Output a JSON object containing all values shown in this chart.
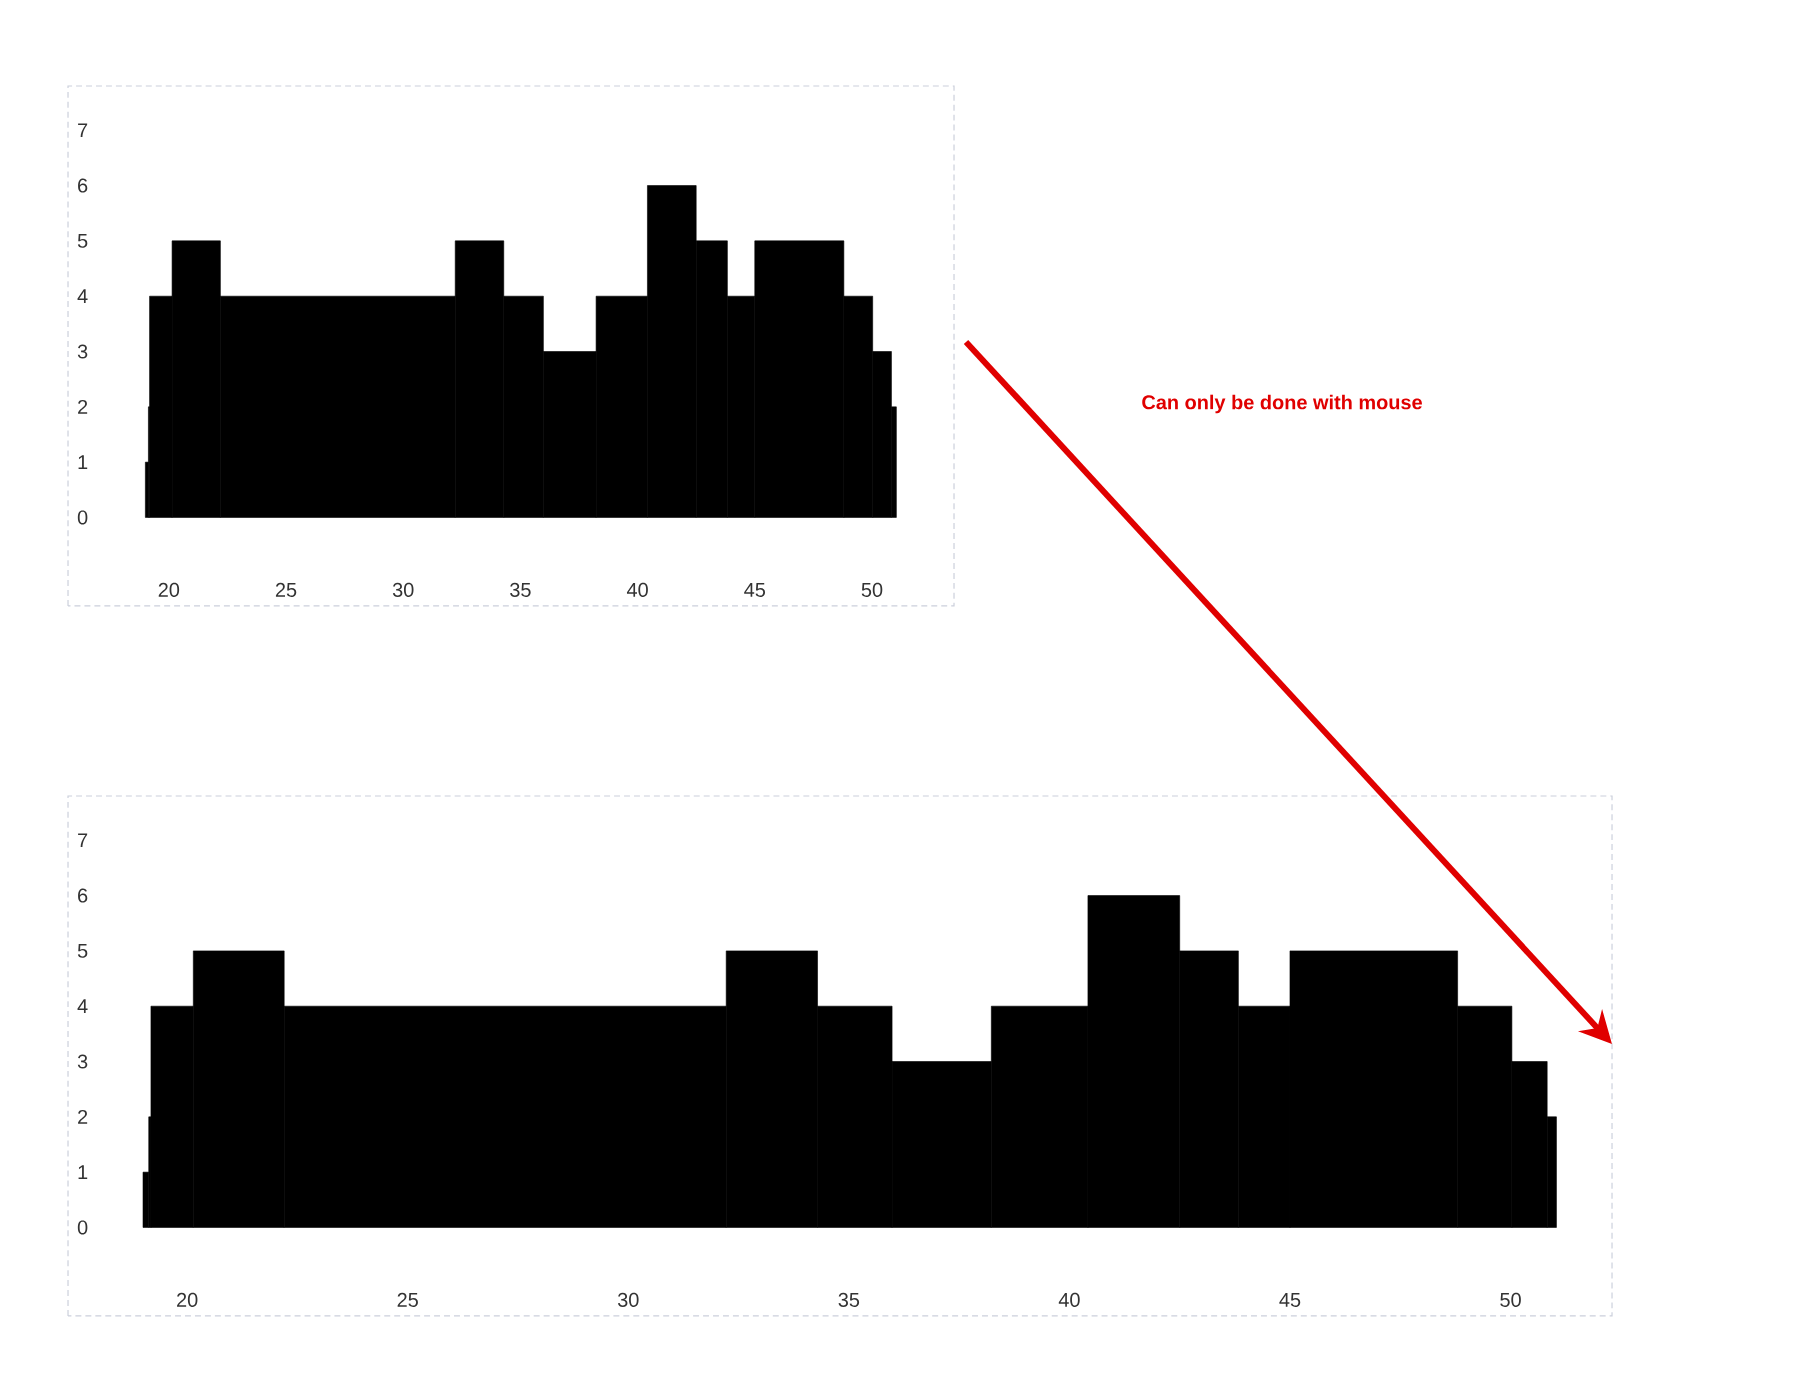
{
  "chart_data": [
    {
      "type": "histogram",
      "bins": [
        19.0,
        19.13,
        19.18,
        20.14,
        22.2,
        32.22,
        34.29,
        35.98,
        38.23,
        40.42,
        42.5,
        43.83,
        45.0,
        48.8,
        50.03,
        50.83,
        51.04
      ],
      "values": [
        1,
        2,
        4,
        5,
        4,
        5,
        4,
        3,
        4,
        6,
        5,
        4,
        5,
        4,
        3,
        2
      ],
      "color": "#000000",
      "xlim": [
        15.7,
        53.5
      ],
      "ylim": [
        -1.6,
        7.8
      ],
      "xticks": [
        20,
        25,
        30,
        35,
        40,
        45,
        50
      ],
      "yticks": [
        0,
        1,
        2,
        3,
        4,
        5,
        6,
        7
      ],
      "annotations": [
        "Can only be done with mouse"
      ]
    },
    {
      "type": "histogram",
      "bins": [
        19.0,
        19.13,
        19.18,
        20.14,
        22.2,
        32.22,
        34.29,
        35.98,
        38.23,
        40.42,
        42.5,
        43.83,
        45.0,
        48.8,
        50.03,
        50.83,
        51.04
      ],
      "values": [
        1,
        2,
        4,
        5,
        4,
        5,
        4,
        3,
        4,
        6,
        5,
        4,
        5,
        4,
        3,
        2
      ],
      "color": "#000000",
      "xlim": [
        17.3,
        52.3
      ],
      "ylim": [
        -1.6,
        7.8
      ],
      "xticks": [
        20,
        25,
        30,
        35,
        40,
        45,
        50
      ],
      "yticks": [
        0,
        1,
        2,
        3,
        4,
        5,
        6,
        7
      ]
    }
  ]
}
